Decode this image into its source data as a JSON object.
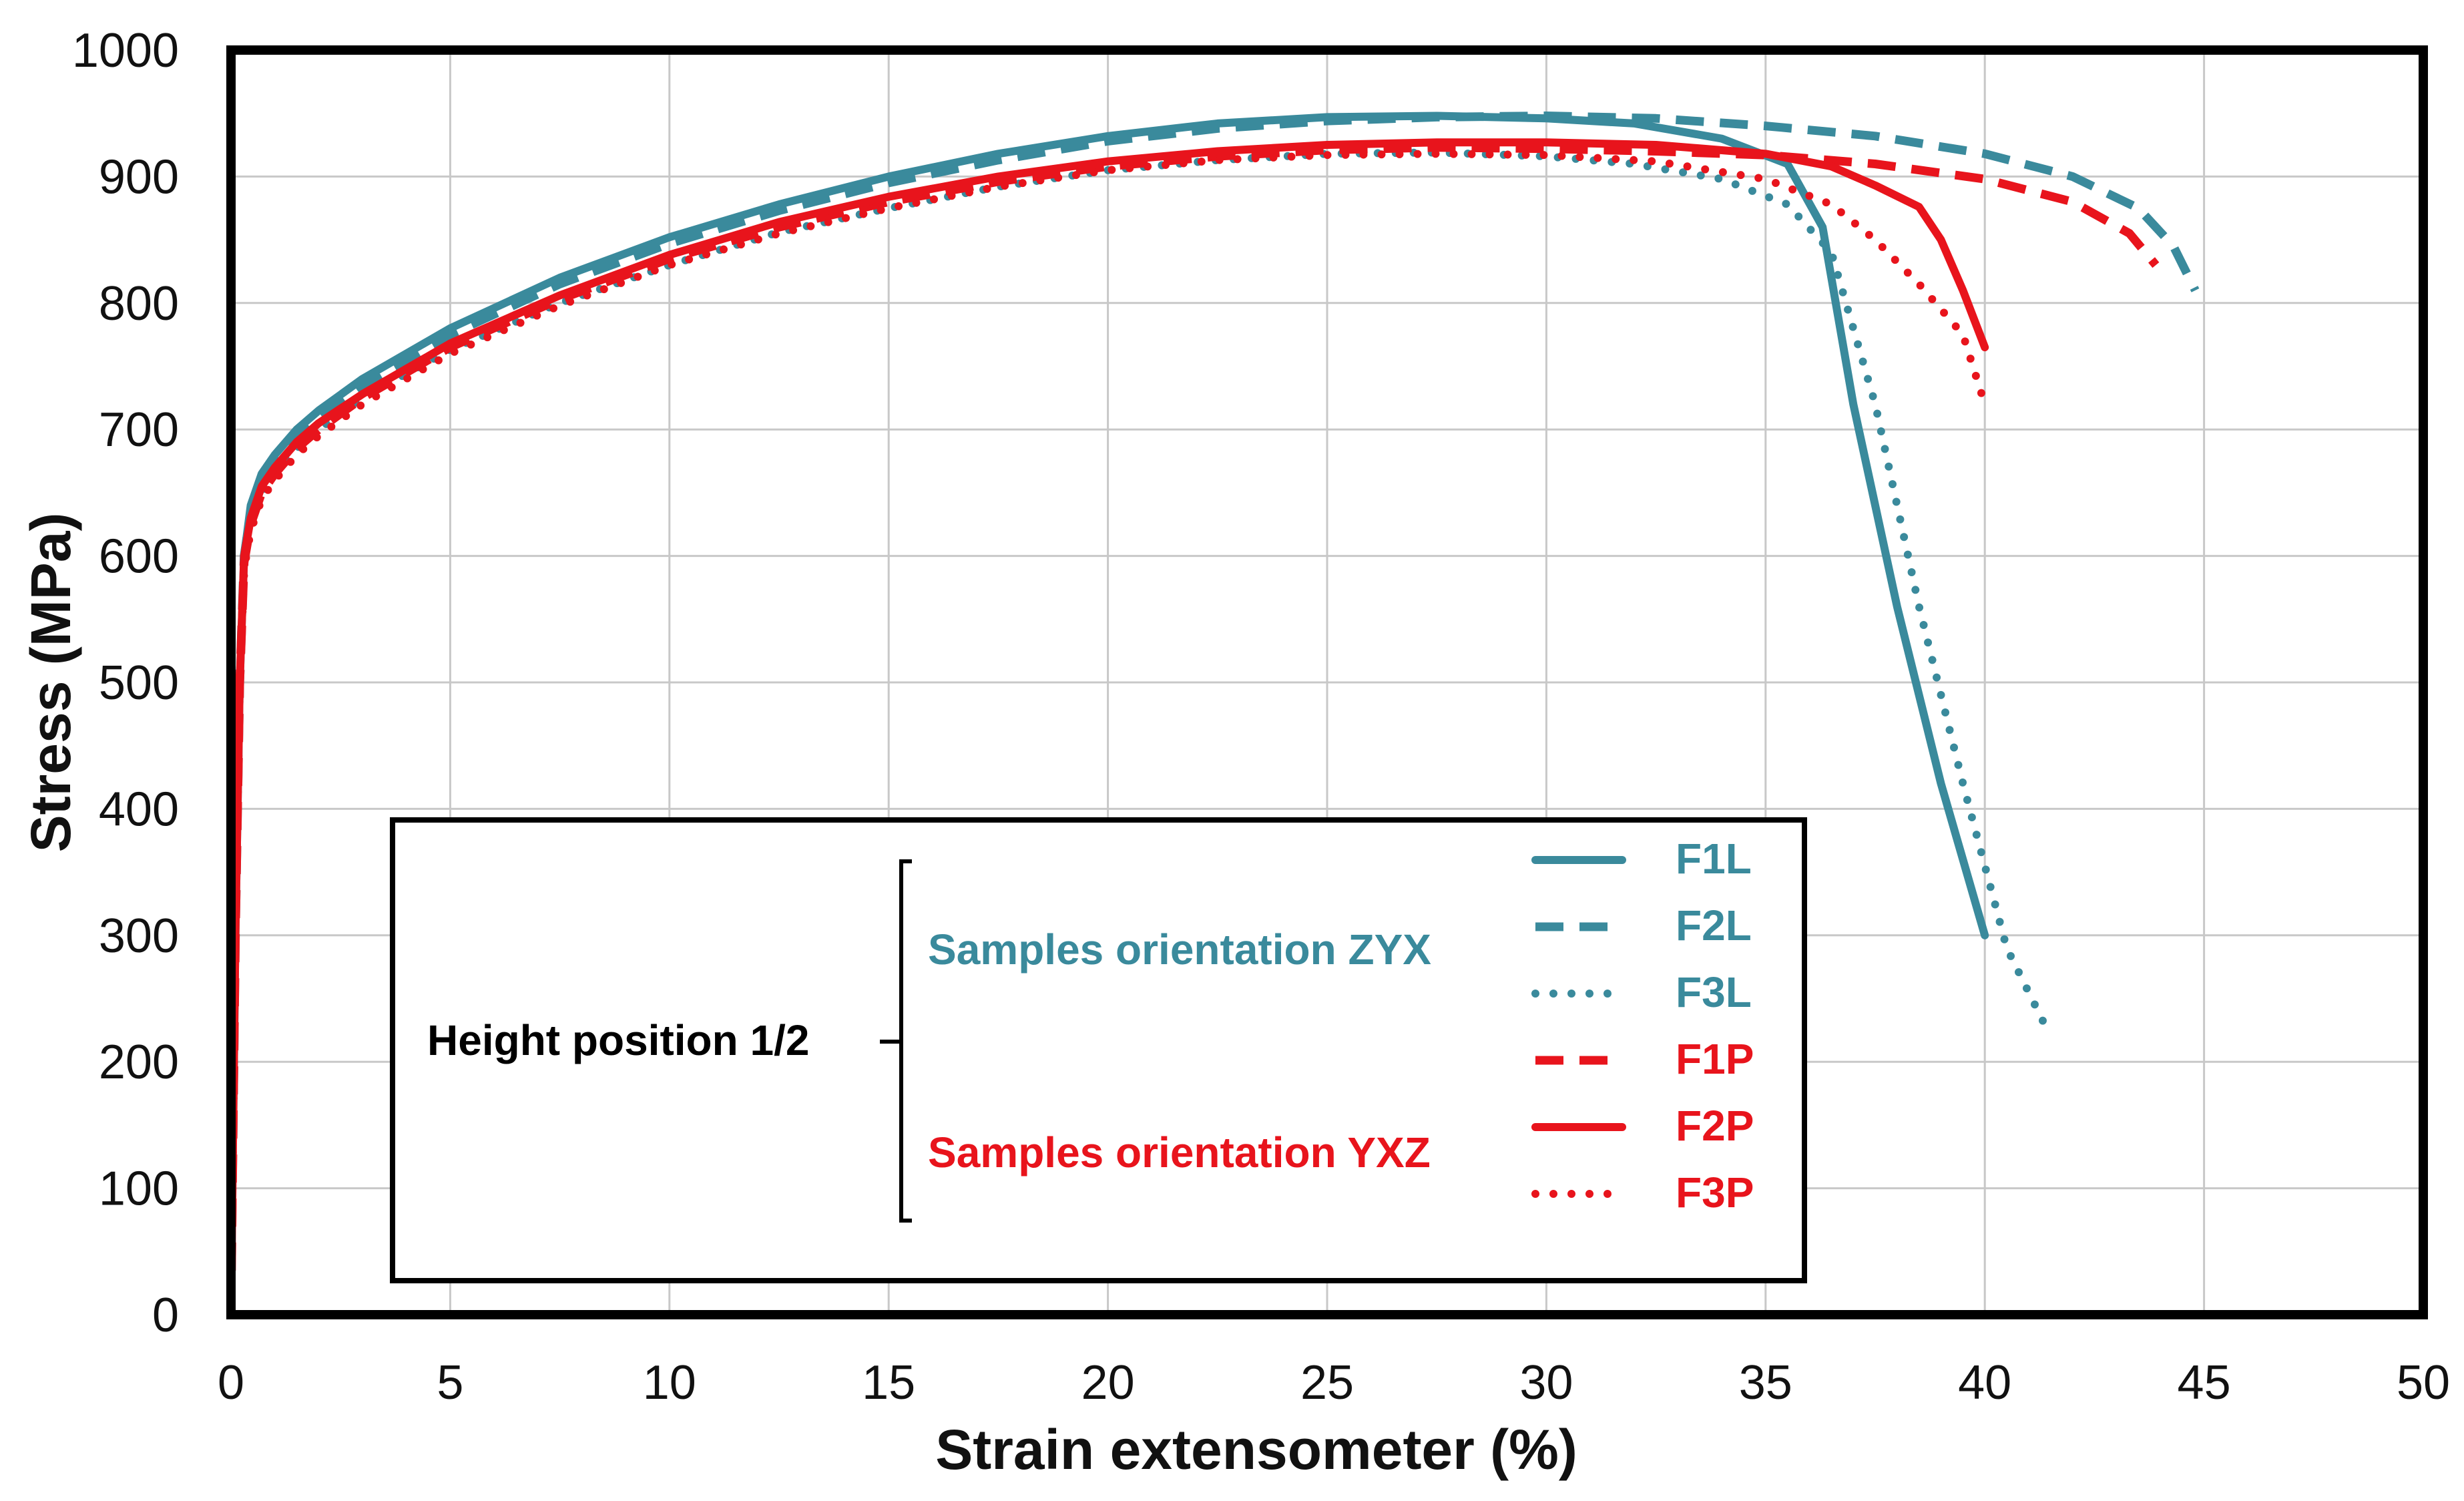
{
  "chart_data": {
    "type": "line",
    "xlabel": "Strain extensometer (%)",
    "ylabel": "Stress (MPa)",
    "xlim": [
      0,
      50
    ],
    "ylim": [
      0,
      1000
    ],
    "x_ticks": [
      "0",
      "5",
      "10",
      "15",
      "20",
      "25",
      "30",
      "35",
      "40",
      "45",
      "50"
    ],
    "y_ticks": [
      "0",
      "100",
      "200",
      "300",
      "400",
      "500",
      "600",
      "700",
      "800",
      "900",
      "1000"
    ],
    "grid": true,
    "colors": {
      "zyx": "#3a8a9c",
      "yxz": "#e8141c"
    },
    "series": [
      {
        "name": "F1L",
        "color": "#3a8a9c",
        "style": "solid",
        "x": [
          0,
          0.1,
          0.2,
          0.3,
          0.45,
          0.7,
          1,
          1.5,
          2,
          3,
          5,
          7.5,
          10,
          12.5,
          15,
          17.5,
          20,
          22.5,
          25,
          27.5,
          30,
          32,
          34,
          35.5,
          36.3,
          37,
          38,
          39,
          40
        ],
        "y": [
          0,
          300,
          500,
          600,
          640,
          665,
          680,
          700,
          715,
          740,
          780,
          820,
          852,
          878,
          900,
          918,
          932,
          942,
          947,
          948,
          946,
          942,
          930,
          910,
          860,
          720,
          560,
          420,
          300
        ]
      },
      {
        "name": "F2L",
        "color": "#3a8a9c",
        "style": "dash",
        "x": [
          0,
          0.1,
          0.2,
          0.3,
          0.45,
          0.7,
          1,
          1.5,
          2,
          3,
          5,
          7.5,
          10,
          12.5,
          15,
          17.5,
          20,
          22.5,
          25,
          27.5,
          30,
          32.5,
          35,
          37.5,
          40,
          42,
          43.5,
          44.3,
          44.8
        ],
        "y": [
          0,
          300,
          500,
          600,
          635,
          660,
          675,
          695,
          710,
          735,
          775,
          815,
          847,
          873,
          895,
          913,
          928,
          938,
          944,
          947,
          948,
          946,
          940,
          932,
          918,
          900,
          875,
          845,
          810
        ]
      },
      {
        "name": "F3L",
        "color": "#3a8a9c",
        "style": "dot",
        "x": [
          0,
          0.1,
          0.2,
          0.3,
          0.45,
          0.7,
          1,
          1.5,
          2,
          3,
          5,
          7.5,
          10,
          12.5,
          15,
          17.5,
          20,
          22.5,
          25,
          27.5,
          30,
          32,
          34,
          35.5,
          36.5,
          37.5,
          38.5,
          39.5,
          40.5,
          41.5
        ],
        "y": [
          0,
          300,
          500,
          590,
          625,
          650,
          665,
          685,
          700,
          725,
          763,
          800,
          830,
          856,
          875,
          892,
          905,
          913,
          918,
          919,
          916,
          910,
          898,
          878,
          840,
          720,
          560,
          420,
          290,
          220
        ]
      },
      {
        "name": "F1P",
        "color": "#e8141c",
        "style": "dash",
        "x": [
          0,
          0.1,
          0.2,
          0.3,
          0.45,
          0.7,
          1,
          1.5,
          2,
          3,
          5,
          7.5,
          10,
          12.5,
          15,
          17.5,
          20,
          22.5,
          25,
          27.5,
          30,
          32.5,
          35,
          37.5,
          40,
          42,
          43.3,
          43.9
        ],
        "y": [
          0,
          300,
          500,
          595,
          625,
          650,
          665,
          685,
          700,
          725,
          765,
          803,
          835,
          860,
          880,
          896,
          908,
          916,
          921,
          923,
          922,
          920,
          917,
          910,
          898,
          880,
          855,
          830
        ]
      },
      {
        "name": "F2P",
        "color": "#e8141c",
        "style": "solid",
        "x": [
          0,
          0.1,
          0.2,
          0.3,
          0.45,
          0.7,
          1,
          1.5,
          2,
          3,
          5,
          7.5,
          10,
          12.5,
          15,
          17.5,
          20,
          22.5,
          25,
          27.5,
          30,
          32.5,
          35,
          36.5,
          37.5,
          38.5,
          39,
          39.5,
          40
        ],
        "y": [
          0,
          300,
          500,
          600,
          630,
          655,
          670,
          690,
          705,
          728,
          768,
          806,
          838,
          864,
          884,
          900,
          912,
          920,
          925,
          927,
          927,
          925,
          918,
          908,
          893,
          876,
          850,
          810,
          765
        ]
      },
      {
        "name": "F3P",
        "color": "#e8141c",
        "style": "dot",
        "x": [
          0,
          0.1,
          0.2,
          0.3,
          0.45,
          0.7,
          1,
          1.5,
          2,
          3,
          5,
          7.5,
          10,
          12.5,
          15,
          17.5,
          20,
          22.5,
          25,
          27.5,
          30,
          32.5,
          35,
          36.5,
          37.5,
          38.5,
          39.5,
          40
        ],
        "y": [
          0,
          300,
          500,
          590,
          620,
          645,
          660,
          680,
          695,
          720,
          760,
          798,
          830,
          855,
          875,
          892,
          905,
          913,
          917,
          918,
          917,
          912,
          898,
          878,
          850,
          815,
          775,
          720
        ]
      }
    ],
    "legend": {
      "group_label": "Height position 1/2",
      "orientation_zyx": "Samples orientation ZYX",
      "orientation_yxz": "Samples orientation YXZ",
      "entries": [
        "F1L",
        "F2L",
        "F3L",
        "F1P",
        "F2P",
        "F3P"
      ]
    }
  }
}
